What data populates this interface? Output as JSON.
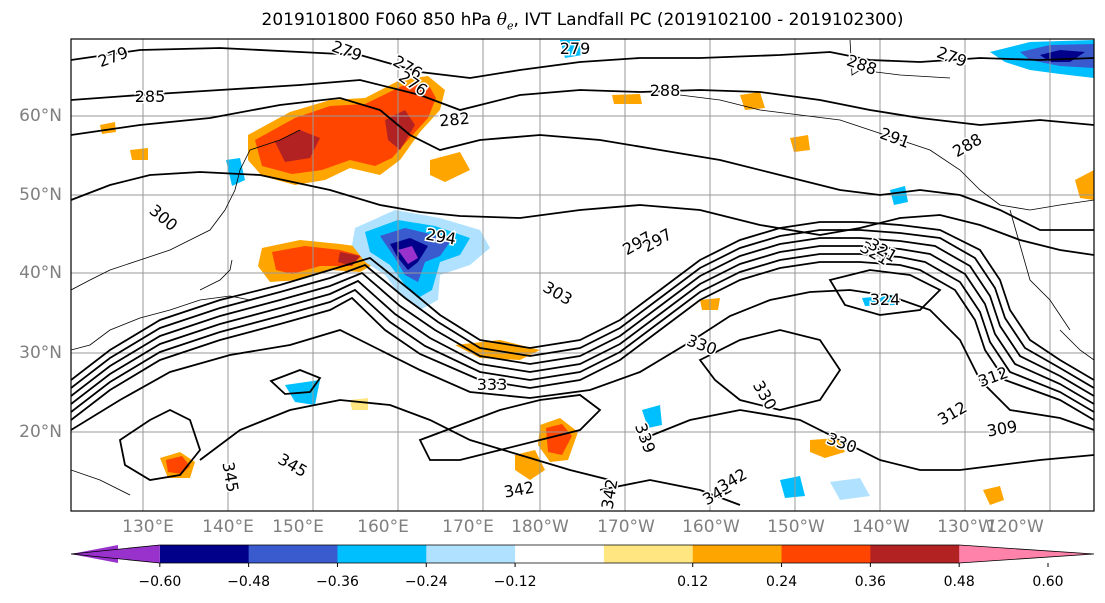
{
  "title": {
    "prefix": "2019101800 F060 850 hPa",
    "theta_symbol": "θ",
    "theta_sub": "e",
    "suffix": ", IVT Landfall PC (2019102100 - 2019102300)"
  },
  "map": {
    "lat_labels": [
      "60°N",
      "50°N",
      "40°N",
      "30°N",
      "20°N"
    ],
    "lon_labels": [
      "130°E",
      "140°E",
      "150°E",
      "160°E",
      "170°E",
      "180°W",
      "170°W",
      "160°W",
      "150°W",
      "140°W",
      "130°W",
      "120°W"
    ],
    "contour_labels": [
      "279",
      "279",
      "276",
      "279",
      "276",
      "279",
      "285",
      "282",
      "288",
      "288",
      "291",
      "288",
      "297",
      "294",
      "300",
      "303",
      "321",
      "324",
      "330",
      "333",
      "330",
      "312",
      "312",
      "309",
      "330",
      "345",
      "345",
      "339",
      "342",
      "342",
      "342",
      "342",
      "297",
      "321"
    ],
    "field": "850 hPa theta-e",
    "shading": "IVT Landfall PC"
  },
  "colorbar": {
    "ticks": [
      "−0.60",
      "−0.48",
      "−0.36",
      "−0.24",
      "−0.12",
      "0.12",
      "0.24",
      "0.36",
      "0.48",
      "0.60"
    ],
    "colors": [
      "#9932cc",
      "#00008b",
      "#3a5bcd",
      "#00bfff",
      "#b0e2ff",
      "#ffffff",
      "#ffe680",
      "#ffa500",
      "#ff4500",
      "#b22222",
      "#ff82ab"
    ]
  }
}
